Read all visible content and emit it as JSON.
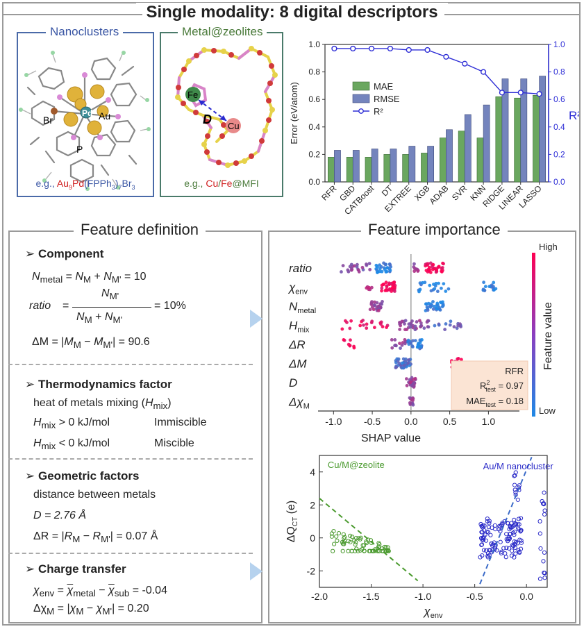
{
  "header": {
    "title": "Single modality: 8 digital descriptors"
  },
  "nanoclusters": {
    "title": "Nanoclusters",
    "labels": {
      "pd": "Pd",
      "au": "Au",
      "br": "Br",
      "p": "P"
    },
    "caption_prefix": "e.g., ",
    "caption_au": "Au",
    "caption_au_sub": "9",
    "caption_pd": "Pd",
    "caption_ligand": "(FPPh",
    "caption_sub3": "3",
    "caption_close": ")",
    "caption_sub7": "7",
    "caption_br": "Br",
    "caption_sub_br": "3"
  },
  "zeolite": {
    "title": "Metal@zeolites",
    "labels": {
      "fe": "Fe",
      "cu": "Cu",
      "d": "D"
    },
    "caption_prefix": "e.g., ",
    "caption_cu": "Cu",
    "caption_slash": "/",
    "caption_fe": "Fe",
    "caption_suffix": "@MFI"
  },
  "feature_definition": {
    "title": "Feature definition",
    "component": {
      "heading": "Component",
      "line1": {
        "a": "N",
        "a_sub": "metal",
        "eq": " = ",
        "b": "N",
        "b_sub": "M",
        "plus": " + ",
        "c": "N",
        "c_sub": "M'",
        "val": " = 10"
      },
      "ratio_label": "ratio",
      "ratio_num": "N",
      "ratio_num_sub": "M'",
      "ratio_den": "N",
      "ratio_den_sub1": "M",
      "ratio_den_plus": " + ",
      "ratio_den_b": "N",
      "ratio_den_sub2": "M'",
      "ratio_val": "= 10%",
      "dm": {
        "pre": "ΔM = |",
        "m1": "M",
        "s1": "M",
        "minus": " − ",
        "m2": "M",
        "s2": "M'",
        "post": "| = 90.6"
      }
    },
    "thermo": {
      "heading": "Thermodynamics factor",
      "desc": "heat of metals mixing (",
      "desc_h": "H",
      "desc_sub": "mix",
      "desc_close": ")",
      "row1_lhs": "H",
      "row1_sub": "mix",
      "row1_op": " > 0 kJ/mol",
      "row1_res": "Immiscible",
      "row2_lhs": "H",
      "row2_sub": "mix",
      "row2_op": " < 0 kJ/mol",
      "row2_res": "Miscible"
    },
    "geometric": {
      "heading": "Geometric factors",
      "desc": "distance between metals",
      "d_line": "D = 2.76 Å",
      "dr": {
        "pre": "ΔR = |",
        "r1": "R",
        "s1": "M",
        "minus": " − ",
        "r2": "R",
        "s2": "M'",
        "post": "| = 0.07 Å"
      }
    },
    "charge": {
      "heading": "Charge transfer",
      "env": {
        "chi": "χ",
        "sub": "env",
        "eq": " = ",
        "a": "χ",
        "a_sub": "metal",
        "minus": " − ",
        "b": "χ",
        "b_sub": "sub",
        "val": " = -0.04"
      },
      "dchi": {
        "pre": "Δχ",
        "sub": "M",
        "eq": " = |",
        "a": "χ",
        "a_sub": "M",
        "minus": " − ",
        "b": "χ",
        "b_sub": "M'",
        "post": "| = 0.20"
      }
    }
  },
  "feature_importance": {
    "title": "Feature importance"
  },
  "chart_data": [
    {
      "type": "bar",
      "categories": [
        "RFR",
        "GBD",
        "CATBoost",
        "DT",
        "EXTREE",
        "XGB",
        "ADAB",
        "SVR",
        "KNN",
        "RIDGE",
        "LINEAR",
        "LASSO"
      ],
      "series": [
        {
          "name": "MAE",
          "values": [
            0.18,
            0.18,
            0.18,
            0.2,
            0.2,
            0.21,
            0.32,
            0.37,
            0.32,
            0.62,
            0.61,
            0.63
          ],
          "color": "#6aa75f"
        },
        {
          "name": "RMSE",
          "values": [
            0.23,
            0.23,
            0.24,
            0.24,
            0.26,
            0.26,
            0.38,
            0.49,
            0.56,
            0.75,
            0.75,
            0.77
          ],
          "color": "#7484bd"
        },
        {
          "name": "R²",
          "values": [
            0.97,
            0.97,
            0.97,
            0.97,
            0.96,
            0.96,
            0.91,
            0.86,
            0.8,
            0.65,
            0.65,
            0.64
          ],
          "color": "#2d2dd6"
        }
      ],
      "ylabel": "Error (eV/atom)",
      "ylabel_right": "R²",
      "ylim": [
        0,
        1.0
      ],
      "y2lim": [
        0,
        1.0
      ],
      "ticks": [
        "0.0",
        "0.2",
        "0.4",
        "0.6",
        "0.8",
        "1.0"
      ],
      "legend": "upper-left"
    },
    {
      "type": "scatter",
      "features": [
        "ratio",
        "χenv",
        "Nmetal",
        "Hmix",
        "ΔR",
        "ΔM",
        "D",
        "ΔχM"
      ],
      "feature_labels": [
        {
          "main": "ratio",
          "sub": ""
        },
        {
          "main": "χ",
          "sub": "env"
        },
        {
          "main": "N",
          "sub": "metal"
        },
        {
          "main": "H",
          "sub": "mix"
        },
        {
          "main": "ΔR",
          "sub": ""
        },
        {
          "main": "ΔM",
          "sub": ""
        },
        {
          "main": "D",
          "sub": ""
        },
        {
          "main": "Δχ",
          "sub": "M"
        }
      ],
      "xlabel": "SHAP value",
      "xlim": [
        -1.2,
        1.4
      ],
      "xticks": [
        "-1.0",
        "-0.5",
        "0.0",
        "0.5",
        "1.0"
      ],
      "colorbar": {
        "title": "Feature value",
        "high": "High",
        "low": "Low"
      },
      "annotation": {
        "model": "RFR",
        "r2_label": "R",
        "r2_sup": "2",
        "r2_sub": "test",
        "r2_val": " = 0.97",
        "mae_label": "MAE",
        "mae_sub": "test",
        "mae_val": " = 0.18"
      }
    },
    {
      "type": "scatter",
      "xlabel": "χ",
      "xlabel_sub": "env",
      "ylabel": "ΔQ",
      "ylabel_sub": "CT",
      "ylabel_unit": " (e)",
      "xlim": [
        -2.0,
        0.2
      ],
      "ylim": [
        -3,
        5
      ],
      "xticks": [
        "-2.0",
        "-1.5",
        "-1.0",
        "-0.5",
        "0.0"
      ],
      "yticks": [
        "-2",
        "0",
        "2",
        "4"
      ],
      "series": [
        {
          "name": "Cu/M@zeolite",
          "color": "#4a9a2e"
        },
        {
          "name": "Au/M nanocluster",
          "color": "#2b2bc8"
        }
      ]
    }
  ]
}
